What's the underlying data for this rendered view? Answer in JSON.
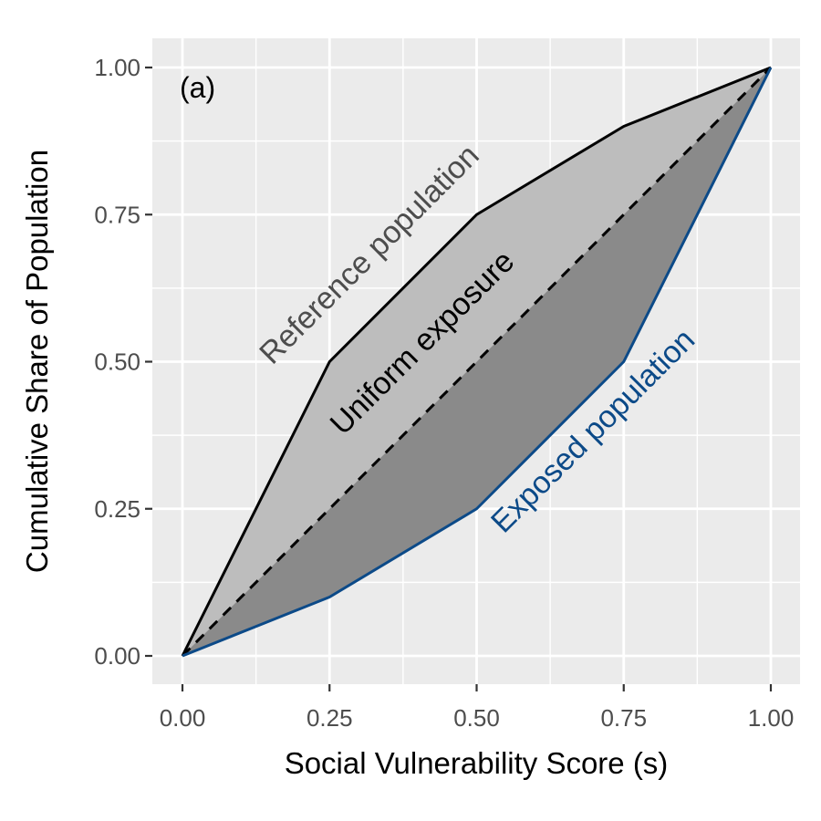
{
  "chart_data": {
    "type": "area",
    "panel_label": "(a)",
    "xlabel": "Social Vulnerability Score (s)",
    "ylabel": "Cumulative Share of Population",
    "xlim": [
      0,
      1
    ],
    "ylim": [
      0,
      1
    ],
    "x_ticks": [
      "0.00",
      "0.25",
      "0.50",
      "0.75",
      "1.00"
    ],
    "y_ticks": [
      "0.00",
      "0.25",
      "0.50",
      "0.75",
      "1.00"
    ],
    "grid": true,
    "series": [
      {
        "x": [
          0,
          0.25,
          0.5,
          0.75,
          1.0
        ],
        "y": [
          0,
          0.5,
          0.75,
          0.9,
          1.0
        ],
        "color": "#000000",
        "fill": "#bdbdbd"
      },
      {
        "x": [
          0,
          1.0
        ],
        "y": [
          0,
          1.0
        ],
        "color": "#000000",
        "dashed": true
      },
      {
        "x": [
          0,
          0.25,
          0.5,
          0.75,
          1.0
        ],
        "y": [
          0,
          0.1,
          0.25,
          0.5,
          1.0
        ],
        "color": "#0c4a88",
        "fill": "#8a8a8a"
      }
    ],
    "annotations": [
      {
        "text": "Reference population",
        "x": 0.32,
        "y": 0.68,
        "color": "#4d4d4d"
      },
      {
        "text": "Uniform exposure",
        "x": 0.41,
        "y": 0.53,
        "color": "#000000"
      },
      {
        "text": "Exposed population",
        "x": 0.7,
        "y": 0.38,
        "color": "#0c4a88"
      }
    ],
    "colors": {
      "panel_background": "#ebebeb",
      "grid": "#ffffff"
    }
  }
}
